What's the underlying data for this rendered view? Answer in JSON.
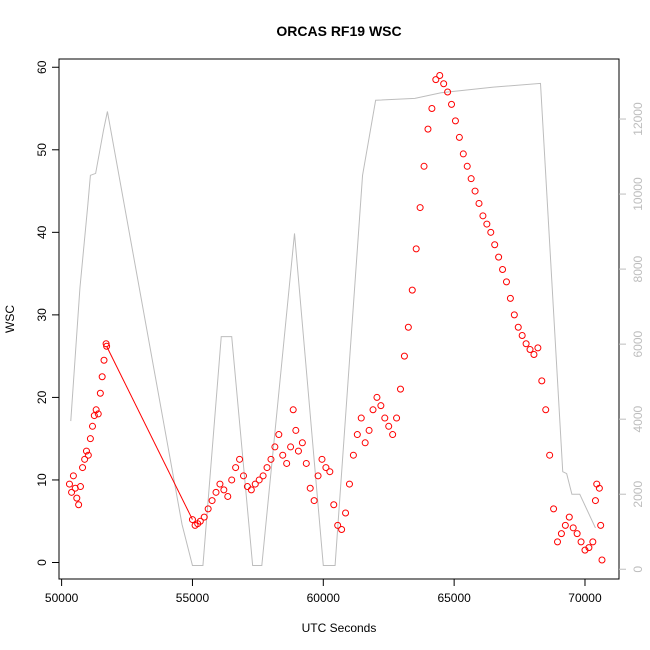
{
  "chart_data": {
    "type": "scatter",
    "title": "ORCAS RF19 WSC",
    "xlabel": "UTC Seconds",
    "ylabel": "WSC",
    "xlim": [
      49900,
      71300
    ],
    "ylim": [
      -2,
      61
    ],
    "y2lim": [
      -260,
      13600
    ],
    "x_ticks": [
      50000,
      55000,
      60000,
      65000,
      70000
    ],
    "y_ticks": [
      0,
      10,
      20,
      30,
      40,
      50,
      60
    ],
    "y2_ticks": [
      0,
      2000,
      4000,
      6000,
      8000,
      10000,
      12000
    ],
    "colors": {
      "wsc": "#ff0000",
      "altitude": "#bdbdbd"
    },
    "grid": false,
    "series": [
      {
        "kind": "scatter",
        "axis": "left",
        "values": [
          [
            50300,
            9.5
          ],
          [
            50380,
            8.5
          ],
          [
            50450,
            10.5
          ],
          [
            50520,
            9.0
          ],
          [
            50580,
            7.8
          ],
          [
            50650,
            7.0
          ],
          [
            50720,
            9.2
          ],
          [
            50800,
            11.5
          ],
          [
            50880,
            12.5
          ],
          [
            50950,
            13.5
          ],
          [
            51020,
            13.0
          ],
          [
            51100,
            15.0
          ],
          [
            51180,
            16.5
          ],
          [
            51250,
            17.8
          ],
          [
            51320,
            18.5
          ],
          [
            51400,
            18.0
          ],
          [
            51480,
            20.5
          ],
          [
            51550,
            22.5
          ],
          [
            51620,
            24.5
          ],
          [
            51700,
            26.5
          ],
          [
            51720,
            26.2
          ],
          [
            55000,
            5.2
          ],
          [
            55100,
            4.5
          ],
          [
            55200,
            4.7
          ],
          [
            55300,
            5.0
          ],
          [
            55450,
            5.5
          ],
          [
            55600,
            6.5
          ],
          [
            55750,
            7.5
          ],
          [
            55900,
            8.5
          ],
          [
            56050,
            9.5
          ],
          [
            56200,
            8.8
          ],
          [
            56350,
            8.0
          ],
          [
            56500,
            10.0
          ],
          [
            56650,
            11.5
          ],
          [
            56800,
            12.5
          ],
          [
            56950,
            10.5
          ],
          [
            57100,
            9.2
          ],
          [
            57250,
            8.8
          ],
          [
            57400,
            9.5
          ],
          [
            57550,
            10.0
          ],
          [
            57700,
            10.5
          ],
          [
            57850,
            11.5
          ],
          [
            58000,
            12.5
          ],
          [
            58150,
            14.0
          ],
          [
            58300,
            15.5
          ],
          [
            58450,
            13.0
          ],
          [
            58600,
            12.0
          ],
          [
            58750,
            14.0
          ],
          [
            58850,
            18.5
          ],
          [
            58950,
            16.0
          ],
          [
            59050,
            13.5
          ],
          [
            59200,
            14.5
          ],
          [
            59350,
            12.0
          ],
          [
            59500,
            9.0
          ],
          [
            59650,
            7.5
          ],
          [
            59800,
            10.5
          ],
          [
            59950,
            12.5
          ],
          [
            60100,
            11.5
          ],
          [
            60250,
            11.0
          ],
          [
            60400,
            7.0
          ],
          [
            60550,
            4.5
          ],
          [
            60700,
            4.0
          ],
          [
            60850,
            6.0
          ],
          [
            61000,
            9.5
          ],
          [
            61150,
            13.0
          ],
          [
            61300,
            15.5
          ],
          [
            61450,
            17.5
          ],
          [
            61600,
            14.5
          ],
          [
            61750,
            16.0
          ],
          [
            61900,
            18.5
          ],
          [
            62050,
            20.0
          ],
          [
            62200,
            19.0
          ],
          [
            62350,
            17.5
          ],
          [
            62500,
            16.5
          ],
          [
            62650,
            15.5
          ],
          [
            62800,
            17.5
          ],
          [
            62950,
            21.0
          ],
          [
            63100,
            25.0
          ],
          [
            63250,
            28.5
          ],
          [
            63400,
            33.0
          ],
          [
            63550,
            38.0
          ],
          [
            63700,
            43.0
          ],
          [
            63850,
            48.0
          ],
          [
            64000,
            52.5
          ],
          [
            64150,
            55.0
          ],
          [
            64300,
            58.5
          ],
          [
            64450,
            59.0
          ],
          [
            64600,
            58.0
          ],
          [
            64750,
            57.0
          ],
          [
            64900,
            55.5
          ],
          [
            65050,
            53.5
          ],
          [
            65200,
            51.5
          ],
          [
            65350,
            49.5
          ],
          [
            65500,
            48.0
          ],
          [
            65650,
            46.5
          ],
          [
            65800,
            45.0
          ],
          [
            65950,
            43.5
          ],
          [
            66100,
            42.0
          ],
          [
            66250,
            41.0
          ],
          [
            66400,
            40.0
          ],
          [
            66550,
            38.5
          ],
          [
            66700,
            37.0
          ],
          [
            66850,
            35.5
          ],
          [
            67000,
            34.0
          ],
          [
            67150,
            32.0
          ],
          [
            67300,
            30.0
          ],
          [
            67450,
            28.5
          ],
          [
            67600,
            27.5
          ],
          [
            67750,
            26.5
          ],
          [
            67900,
            25.8
          ],
          [
            68050,
            25.2
          ],
          [
            68200,
            26.0
          ],
          [
            68350,
            22.0
          ],
          [
            68500,
            18.5
          ],
          [
            68650,
            13.0
          ],
          [
            68800,
            6.5
          ],
          [
            68950,
            2.5
          ],
          [
            69100,
            3.5
          ],
          [
            69250,
            4.5
          ],
          [
            69400,
            5.5
          ],
          [
            69550,
            4.2
          ],
          [
            69700,
            3.5
          ],
          [
            69850,
            2.5
          ],
          [
            70000,
            1.5
          ],
          [
            70150,
            1.8
          ],
          [
            70300,
            2.5
          ],
          [
            70400,
            7.5
          ],
          [
            70450,
            9.5
          ],
          [
            70550,
            9.0
          ],
          [
            70600,
            4.5
          ],
          [
            70650,
            0.3
          ]
        ]
      },
      {
        "kind": "line",
        "axis": "left",
        "values": [
          [
            51720,
            26.2
          ],
          [
            55000,
            5.2
          ]
        ]
      },
      {
        "kind": "line",
        "axis": "right",
        "values": [
          [
            50350,
            3950
          ],
          [
            50700,
            7500
          ],
          [
            51000,
            9700
          ],
          [
            51100,
            10500
          ],
          [
            51300,
            10550
          ],
          [
            51600,
            11700
          ],
          [
            51750,
            12200
          ],
          [
            54600,
            1200
          ],
          [
            55000,
            100
          ],
          [
            55400,
            100
          ],
          [
            56100,
            6200
          ],
          [
            56500,
            6200
          ],
          [
            57300,
            100
          ],
          [
            57650,
            100
          ],
          [
            58900,
            8950
          ],
          [
            60000,
            100
          ],
          [
            60450,
            100
          ],
          [
            61500,
            10500
          ],
          [
            62000,
            12500
          ],
          [
            63500,
            12550
          ],
          [
            64500,
            12700
          ],
          [
            66500,
            12850
          ],
          [
            68300,
            12950
          ],
          [
            69150,
            2600
          ],
          [
            69300,
            2550
          ],
          [
            69500,
            2000
          ],
          [
            69800,
            2000
          ],
          [
            70400,
            1100
          ]
        ]
      }
    ]
  }
}
